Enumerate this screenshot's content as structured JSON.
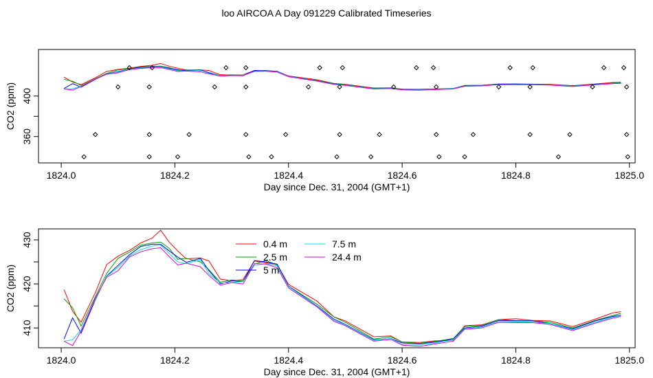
{
  "title": "loo AIRCOA A  Day 091229  Calibrated Timeseries",
  "colors": {
    "0.4 m": "#ff0000",
    "2.5 m": "#00a000",
    "5 m": "#0000ff",
    "7.5 m": "#00e0e0",
    "24.4 m": "#e000e0"
  },
  "chart_data": [
    {
      "type": "line",
      "xlabel": "Day since Dec. 31, 2004 (GMT+1)",
      "ylabel": "CO2 (ppm)",
      "xlim": [
        1823.96,
        1825.01
      ],
      "ylim": [
        334,
        446
      ],
      "x_ticks": [
        1824.0,
        1824.2,
        1824.4,
        1824.6,
        1824.8,
        1825.0
      ],
      "x_tick_labels": [
        "1824.0",
        "1824.2",
        "1824.4",
        "1824.6",
        "1824.8",
        "1825.0"
      ],
      "y_ticks": [
        360,
        380,
        400
      ],
      "y_tick_labels": [
        "360",
        "",
        "400"
      ],
      "series_lines": "same as panel 2",
      "points": [
        [
          1824.04,
          340
        ],
        [
          1824.06,
          362
        ],
        [
          1824.1,
          409
        ],
        [
          1824.12,
          428
        ],
        [
          1824.155,
          340
        ],
        [
          1824.155,
          362
        ],
        [
          1824.155,
          409
        ],
        [
          1824.16,
          428
        ],
        [
          1824.205,
          340
        ],
        [
          1824.225,
          362
        ],
        [
          1824.27,
          409
        ],
        [
          1824.29,
          428
        ],
        [
          1824.325,
          362
        ],
        [
          1824.325,
          409
        ],
        [
          1824.33,
          340
        ],
        [
          1824.325,
          428
        ],
        [
          1824.37,
          340
        ],
        [
          1824.395,
          362
        ],
        [
          1824.435,
          409
        ],
        [
          1824.455,
          428
        ],
        [
          1824.485,
          340
        ],
        [
          1824.49,
          362
        ],
        [
          1824.49,
          409
        ],
        [
          1824.495,
          428
        ],
        [
          1824.545,
          340
        ],
        [
          1824.56,
          362
        ],
        [
          1824.585,
          409
        ],
        [
          1824.625,
          428
        ],
        [
          1824.66,
          362
        ],
        [
          1824.66,
          409
        ],
        [
          1824.665,
          340
        ],
        [
          1824.655,
          428
        ],
        [
          1824.71,
          340
        ],
        [
          1824.725,
          362
        ],
        [
          1824.77,
          409
        ],
        [
          1824.79,
          428
        ],
        [
          1824.825,
          362
        ],
        [
          1824.825,
          409
        ],
        [
          1824.83,
          428
        ],
        [
          1824.875,
          340
        ],
        [
          1824.895,
          362
        ],
        [
          1824.935,
          409
        ],
        [
          1824.955,
          428
        ],
        [
          1824.99,
          428
        ],
        [
          1824.995,
          362
        ],
        [
          1824.995,
          409
        ],
        [
          1824.997,
          340
        ]
      ]
    },
    {
      "type": "line",
      "xlabel": "Day since Dec. 31, 2004 (GMT+1)",
      "ylabel": "CO2 (ppm)",
      "xlim": [
        1823.96,
        1825.01
      ],
      "ylim": [
        405.5,
        432.5
      ],
      "x_ticks": [
        1824.0,
        1824.2,
        1824.4,
        1824.6,
        1824.8,
        1825.0
      ],
      "x_tick_labels": [
        "1824.0",
        "1824.2",
        "1824.4",
        "1824.6",
        "1824.8",
        "1825.0"
      ],
      "y_ticks": [
        410,
        415,
        420,
        425,
        430
      ],
      "y_tick_labels": [
        "410",
        "",
        "420",
        "",
        "430"
      ],
      "legend": [
        "0.4 m",
        "2.5 m",
        "5 m",
        "7.5 m",
        "24.4 m"
      ],
      "series": [
        {
          "name": "0.4 m",
          "x": [
            1824.005,
            1824.02,
            1824.035,
            1824.06,
            1824.08,
            1824.1,
            1824.12,
            1824.14,
            1824.16,
            1824.175,
            1824.19,
            1824.205,
            1824.22,
            1824.245,
            1824.26,
            1824.28,
            1824.3,
            1824.32,
            1824.34,
            1824.36,
            1824.38,
            1824.4,
            1824.45,
            1824.48,
            1824.5,
            1824.55,
            1824.58,
            1824.6,
            1824.63,
            1824.66,
            1824.69,
            1824.71,
            1824.74,
            1824.77,
            1824.8,
            1824.83,
            1824.86,
            1824.9,
            1824.94,
            1824.97,
            1824.985
          ],
          "y": [
            418.7,
            413.8,
            411.3,
            418.0,
            424.4,
            426.3,
            427.6,
            429.3,
            430.4,
            432.2,
            429.5,
            427.5,
            425.7,
            425.9,
            425.2,
            421.1,
            420.7,
            421.0,
            425.2,
            424.8,
            424.4,
            419.9,
            416.1,
            412.5,
            411.6,
            408.0,
            408.2,
            406.8,
            406.7,
            407.1,
            407.2,
            410.5,
            410.7,
            411.9,
            412.1,
            411.7,
            411.6,
            410.3,
            412.0,
            413.4,
            413.7
          ]
        },
        {
          "name": "2.5 m",
          "x": [
            1824.005,
            1824.02,
            1824.035,
            1824.06,
            1824.08,
            1824.1,
            1824.12,
            1824.14,
            1824.16,
            1824.175,
            1824.19,
            1824.205,
            1824.22,
            1824.245,
            1824.26,
            1824.28,
            1824.3,
            1824.32,
            1824.34,
            1824.36,
            1824.38,
            1824.4,
            1824.45,
            1824.48,
            1824.5,
            1824.55,
            1824.58,
            1824.6,
            1824.63,
            1824.66,
            1824.69,
            1824.71,
            1824.74,
            1824.77,
            1824.8,
            1824.83,
            1824.86,
            1824.9,
            1824.94,
            1824.97,
            1824.985
          ],
          "y": [
            416.6,
            414.6,
            410.4,
            417.1,
            422.4,
            425.8,
            427.2,
            428.8,
            429.3,
            429.5,
            428.1,
            425.6,
            425.8,
            425.0,
            423.2,
            420.4,
            420.9,
            420.7,
            424.5,
            425.3,
            424.3,
            419.5,
            415.4,
            412.5,
            411.3,
            407.5,
            408.0,
            406.8,
            406.5,
            407.0,
            407.6,
            410.3,
            410.6,
            411.9,
            411.7,
            411.6,
            411.3,
            410.0,
            411.7,
            412.8,
            413.3
          ]
        },
        {
          "name": "5 m",
          "x": [
            1824.005,
            1824.02,
            1824.035,
            1824.06,
            1824.08,
            1824.1,
            1824.12,
            1824.14,
            1824.16,
            1824.175,
            1824.19,
            1824.205,
            1824.22,
            1824.245,
            1824.26,
            1824.28,
            1824.3,
            1824.32,
            1824.34,
            1824.36,
            1824.38,
            1824.4,
            1824.45,
            1824.48,
            1824.5,
            1824.55,
            1824.58,
            1824.6,
            1824.63,
            1824.66,
            1824.69,
            1824.71,
            1824.74,
            1824.77,
            1824.8,
            1824.83,
            1824.86,
            1824.9,
            1824.94,
            1824.97,
            1824.985
          ],
          "y": [
            407.5,
            412.3,
            408.8,
            416.4,
            421.8,
            424.2,
            426.6,
            428.5,
            429.0,
            429.0,
            427.5,
            426.1,
            424.9,
            425.8,
            423.0,
            420.0,
            420.7,
            420.5,
            425.3,
            425.0,
            424.5,
            419.5,
            415.0,
            412.0,
            410.8,
            407.3,
            407.6,
            406.6,
            406.4,
            406.8,
            407.5,
            410.0,
            410.4,
            411.7,
            411.6,
            411.6,
            411.0,
            409.8,
            411.6,
            412.6,
            412.9
          ]
        },
        {
          "name": "7.5 m",
          "x": [
            1824.005,
            1824.02,
            1824.035,
            1824.06,
            1824.08,
            1824.1,
            1824.12,
            1824.14,
            1824.16,
            1824.175,
            1824.19,
            1824.205,
            1824.22,
            1824.245,
            1824.26,
            1824.28,
            1824.3,
            1824.32,
            1824.34,
            1824.36,
            1824.38,
            1824.4,
            1824.45,
            1824.48,
            1824.5,
            1824.55,
            1824.58,
            1824.6,
            1824.63,
            1824.66,
            1824.69,
            1824.71,
            1824.74,
            1824.77,
            1824.8,
            1824.83,
            1824.86,
            1824.9,
            1824.94,
            1824.97,
            1824.985
          ],
          "y": [
            407.0,
            407.3,
            409.6,
            416.6,
            421.7,
            423.8,
            426.3,
            427.8,
            428.6,
            428.8,
            426.9,
            425.0,
            424.6,
            425.5,
            422.3,
            420.2,
            420.3,
            420.5,
            424.2,
            424.6,
            424.1,
            419.4,
            414.9,
            411.7,
            410.7,
            407.2,
            407.6,
            406.2,
            406.1,
            406.6,
            407.3,
            409.8,
            410.2,
            411.4,
            411.4,
            411.3,
            411.0,
            409.6,
            411.3,
            412.4,
            412.8
          ]
        },
        {
          "name": "24.4 m",
          "x": [
            1824.005,
            1824.02,
            1824.035,
            1824.06,
            1824.08,
            1824.1,
            1824.12,
            1824.14,
            1824.16,
            1824.175,
            1824.19,
            1824.205,
            1824.22,
            1824.245,
            1824.26,
            1824.28,
            1824.3,
            1824.32,
            1824.34,
            1824.36,
            1824.38,
            1824.4,
            1824.45,
            1824.48,
            1824.5,
            1824.55,
            1824.58,
            1824.6,
            1824.63,
            1824.66,
            1824.69,
            1824.71,
            1824.74,
            1824.77,
            1824.8,
            1824.83,
            1824.86,
            1824.9,
            1824.94,
            1824.97,
            1824.985
          ],
          "y": [
            407.0,
            406.0,
            409.3,
            416.8,
            421.5,
            423.0,
            426.1,
            427.3,
            428.0,
            428.2,
            426.2,
            424.3,
            424.7,
            423.9,
            421.9,
            419.7,
            420.3,
            420.0,
            424.6,
            424.5,
            423.7,
            419.1,
            414.8,
            411.5,
            410.5,
            407.0,
            407.4,
            406.1,
            405.8,
            406.4,
            407.0,
            409.7,
            410.0,
            411.3,
            411.2,
            411.2,
            410.8,
            409.4,
            411.1,
            412.2,
            412.6
          ]
        }
      ]
    }
  ]
}
